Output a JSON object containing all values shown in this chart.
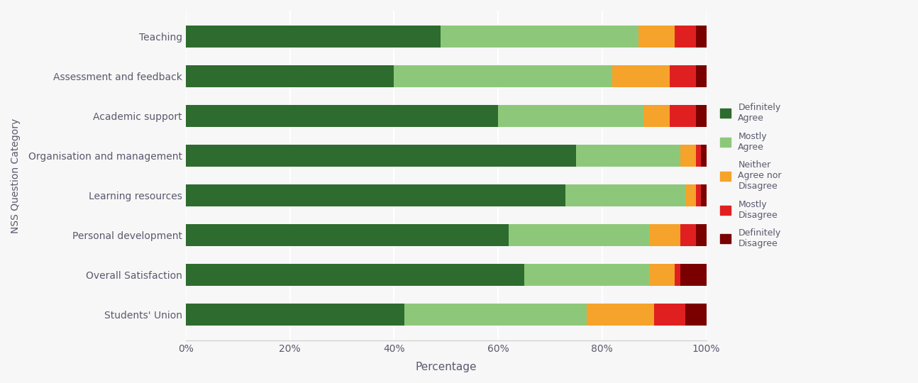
{
  "categories": [
    "Students' Union",
    "Overall Satisfaction",
    "Personal development",
    "Learning resources",
    "Organisation and management",
    "Academic support",
    "Assessment and feedback",
    "Teaching"
  ],
  "series": {
    "Definitely Agree": [
      42,
      65,
      62,
      73,
      75,
      60,
      40,
      49
    ],
    "Mostly Agree": [
      35,
      24,
      27,
      23,
      20,
      28,
      42,
      38
    ],
    "Neither Agree nor Disagree": [
      13,
      5,
      6,
      2,
      3,
      5,
      11,
      7
    ],
    "Mostly Disagree": [
      6,
      1,
      3,
      1,
      1,
      5,
      5,
      4
    ],
    "Definitely Disagree": [
      4,
      5,
      2,
      1,
      1,
      2,
      2,
      2
    ]
  },
  "colors": {
    "Definitely Agree": "#2e6b2e",
    "Mostly Agree": "#8dc87a",
    "Neither Agree nor Disagree": "#f5a32a",
    "Mostly Disagree": "#e02020",
    "Definitely Disagree": "#7a0000"
  },
  "xlabel": "Percentage",
  "ylabel": "NSS Question Category",
  "xticks": [
    0,
    20,
    40,
    60,
    80,
    100
  ],
  "xlim": [
    0,
    100
  ],
  "background_color": "#f7f7f7",
  "bar_height": 0.55
}
